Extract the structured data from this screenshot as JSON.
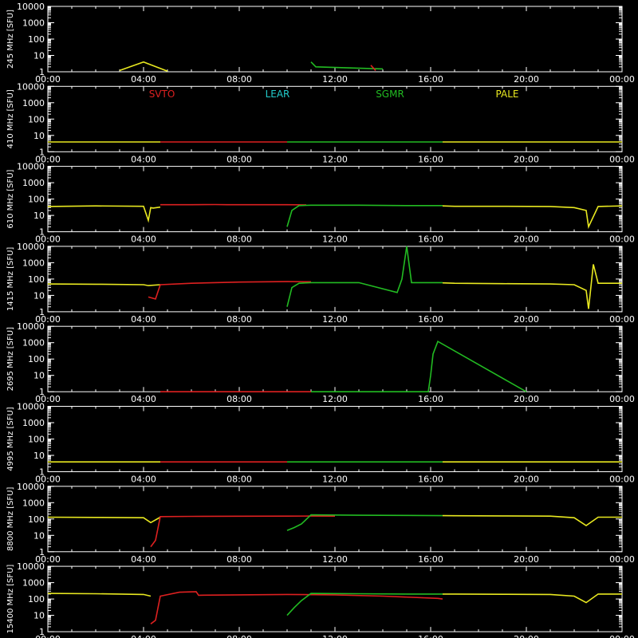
{
  "figure": {
    "background": "#000000",
    "axis_color": "#ffffff",
    "station_colors": {
      "SVTO": "#dd2020",
      "LEAR": "#22cccc",
      "SGMR": "#22bb22",
      "PALE": "#e8e820"
    },
    "legend": [
      "SVTO",
      "LEAR",
      "SGMR",
      "PALE"
    ],
    "unit_label": "[SFU]"
  },
  "chart_data": [
    {
      "type": "line",
      "ylabel": "245 MHz",
      "yscale": "log",
      "ylim": [
        1,
        10000
      ],
      "xlim": [
        "00:00",
        "24:00"
      ],
      "xticks": [
        "00:00",
        "04:00",
        "08:00",
        "12:00",
        "16:00",
        "20:00",
        "00:00"
      ],
      "yticks": [
        "1",
        "10",
        "100",
        "1000",
        "10000"
      ],
      "series": [
        {
          "name": "PALE",
          "x": [
            3.0,
            4.0,
            5.0
          ],
          "y": [
            1.2,
            4,
            1.1
          ]
        },
        {
          "name": "SGMR",
          "x": [
            11.0,
            11.2,
            14.0
          ],
          "y": [
            4,
            2,
            1.5
          ]
        },
        {
          "name": "SVTO",
          "x": [
            13.5,
            13.7
          ],
          "y": [
            2.5,
            1.2
          ]
        }
      ]
    },
    {
      "type": "line",
      "ylabel": "410 MHz",
      "yscale": "log",
      "ylim": [
        1,
        10000
      ],
      "xlim": [
        "00:00",
        "24:00"
      ],
      "xticks": [
        "00:00",
        "04:00",
        "08:00",
        "12:00",
        "16:00",
        "20:00",
        "00:00"
      ],
      "yticks": [
        "1",
        "10",
        "100",
        "1000",
        "10000"
      ],
      "series": [
        {
          "name": "PALE",
          "x": [
            0,
            4.7
          ],
          "y": [
            4,
            4
          ]
        },
        {
          "name": "SVTO",
          "x": [
            4.7,
            10.0
          ],
          "y": [
            4,
            4
          ]
        },
        {
          "name": "SGMR",
          "x": [
            10.0,
            16.5
          ],
          "y": [
            4,
            4
          ]
        },
        {
          "name": "PALE",
          "x": [
            16.5,
            24
          ],
          "y": [
            4,
            4
          ]
        }
      ]
    },
    {
      "type": "line",
      "ylabel": "610 MHz",
      "yscale": "log",
      "ylim": [
        1,
        10000
      ],
      "xlim": [
        "00:00",
        "24:00"
      ],
      "xticks": [
        "00:00",
        "04:00",
        "08:00",
        "12:00",
        "16:00",
        "20:00",
        "00:00"
      ],
      "yticks": [
        "1",
        "10",
        "100",
        "1000",
        "10000"
      ],
      "series": [
        {
          "name": "PALE",
          "x": [
            0,
            2,
            4.0,
            4.2,
            4.3,
            4.4,
            4.7
          ],
          "y": [
            35,
            38,
            36,
            5,
            30,
            28,
            32
          ]
        },
        {
          "name": "SVTO",
          "x": [
            4.7,
            6,
            7,
            7.5,
            8,
            9,
            10.0,
            10.8
          ],
          "y": [
            45,
            45,
            46,
            45,
            45,
            45,
            45,
            44
          ]
        },
        {
          "name": "SGMR",
          "x": [
            10.0,
            10.2,
            10.5,
            11,
            13,
            15,
            16.5
          ],
          "y": [
            2,
            20,
            40,
            42,
            42,
            40,
            40
          ]
        },
        {
          "name": "PALE",
          "x": [
            16.5,
            17,
            19,
            21,
            22,
            22.5,
            22.6,
            23,
            24
          ],
          "y": [
            38,
            36,
            36,
            35,
            30,
            20,
            2,
            35,
            38
          ]
        }
      ]
    },
    {
      "type": "line",
      "ylabel": "1415 MHz",
      "yscale": "log",
      "ylim": [
        1,
        10000
      ],
      "xlim": [
        "00:00",
        "24:00"
      ],
      "xticks": [
        "00:00",
        "04:00",
        "08:00",
        "12:00",
        "16:00",
        "20:00",
        "00:00"
      ],
      "yticks": [
        "1",
        "10",
        "100",
        "1000",
        "10000"
      ],
      "series": [
        {
          "name": "PALE",
          "x": [
            0,
            2,
            4.0,
            4.2,
            4.7
          ],
          "y": [
            50,
            48,
            45,
            40,
            45
          ]
        },
        {
          "name": "SVTO",
          "x": [
            4.2,
            4.5,
            4.7,
            6,
            8,
            10.0,
            11
          ],
          "y": [
            8,
            6,
            45,
            55,
            65,
            70,
            68
          ]
        },
        {
          "name": "SGMR",
          "x": [
            10.0,
            10.2,
            10.5,
            11,
            13,
            14.6,
            14.8,
            15.0,
            15.2,
            16.5
          ],
          "y": [
            2,
            30,
            55,
            60,
            60,
            15,
            100,
            10000,
            60,
            60
          ]
        },
        {
          "name": "PALE",
          "x": [
            16.5,
            17,
            19,
            21,
            22,
            22.5,
            22.6,
            22.8,
            23.0,
            24
          ],
          "y": [
            58,
            55,
            52,
            50,
            45,
            20,
            1.5,
            800,
            55,
            55
          ]
        }
      ]
    },
    {
      "type": "line",
      "ylabel": "2695 MHz",
      "yscale": "log",
      "ylim": [
        1,
        10000
      ],
      "xlim": [
        "00:00",
        "24:00"
      ],
      "xticks": [
        "00:00",
        "04:00",
        "08:00",
        "12:00",
        "16:00",
        "20:00",
        "00:00"
      ],
      "yticks": [
        "1",
        "10",
        "100",
        "1000",
        "10000"
      ],
      "series": [
        {
          "name": "SVTO",
          "x": [
            4.7,
            11.0
          ],
          "y": [
            1,
            1
          ]
        },
        {
          "name": "SGMR",
          "x": [
            11.0,
            15.9,
            16.0,
            16.1,
            16.3,
            20.0
          ],
          "y": [
            1,
            1,
            10,
            200,
            1200,
            1
          ]
        }
      ]
    },
    {
      "type": "line",
      "ylabel": "4995 MHz",
      "yscale": "log",
      "ylim": [
        1,
        10000
      ],
      "xlim": [
        "00:00",
        "24:00"
      ],
      "xticks": [
        "00:00",
        "04:00",
        "08:00",
        "12:00",
        "16:00",
        "20:00",
        "00:00"
      ],
      "yticks": [
        "1",
        "10",
        "100",
        "1000",
        "10000"
      ],
      "series": [
        {
          "name": "PALE",
          "x": [
            0,
            4.7
          ],
          "y": [
            4,
            4
          ]
        },
        {
          "name": "SVTO",
          "x": [
            4.7,
            10.0
          ],
          "y": [
            4,
            4
          ]
        },
        {
          "name": "SGMR",
          "x": [
            10.0,
            16.5
          ],
          "y": [
            4,
            4
          ]
        },
        {
          "name": "PALE",
          "x": [
            16.5,
            24
          ],
          "y": [
            4,
            4
          ]
        }
      ]
    },
    {
      "type": "line",
      "ylabel": "8800 MHz",
      "yscale": "log",
      "ylim": [
        1,
        10000
      ],
      "xlim": [
        "00:00",
        "24:00"
      ],
      "xticks": [
        "00:00",
        "04:00",
        "08:00",
        "12:00",
        "16:00",
        "20:00",
        "00:00"
      ],
      "yticks": [
        "1",
        "10",
        "100",
        "1000",
        "10000"
      ],
      "series": [
        {
          "name": "PALE",
          "x": [
            0,
            2,
            4.0,
            4.3,
            4.7
          ],
          "y": [
            130,
            125,
            120,
            60,
            130
          ]
        },
        {
          "name": "SVTO",
          "x": [
            4.3,
            4.5,
            4.7,
            6,
            8,
            10.0,
            11,
            12
          ],
          "y": [
            2,
            5,
            140,
            145,
            148,
            150,
            152,
            150
          ]
        },
        {
          "name": "SGMR",
          "x": [
            10.0,
            10.3,
            10.6,
            11,
            13,
            15,
            16.5
          ],
          "y": [
            20,
            30,
            50,
            180,
            170,
            165,
            160
          ]
        },
        {
          "name": "PALE",
          "x": [
            16.5,
            17,
            19,
            21,
            22,
            22.5,
            23.0,
            24
          ],
          "y": [
            160,
            158,
            155,
            150,
            120,
            40,
            130,
            130
          ]
        }
      ]
    },
    {
      "type": "line",
      "ylabel": "15400 MHz",
      "yscale": "log",
      "ylim": [
        1,
        10000
      ],
      "xlim": [
        "00:00",
        "24:00"
      ],
      "xticks": [
        "00:00",
        "04:00",
        "08:00",
        "12:00",
        "16:00",
        "20:00",
        "00:00"
      ],
      "yticks": [
        "1",
        "10",
        "100",
        "1000",
        "10000"
      ],
      "series": [
        {
          "name": "PALE",
          "x": [
            0,
            2,
            4.0,
            4.3
          ],
          "y": [
            220,
            210,
            190,
            150
          ]
        },
        {
          "name": "SVTO",
          "x": [
            4.3,
            4.5,
            4.7,
            5.5,
            6.2,
            6.3,
            8,
            10.0,
            12,
            14,
            16.3,
            16.5
          ],
          "y": [
            3,
            5,
            150,
            260,
            280,
            170,
            180,
            190,
            180,
            150,
            110,
            100
          ]
        },
        {
          "name": "SGMR",
          "x": [
            10.0,
            10.3,
            10.6,
            11,
            13,
            15,
            16.5
          ],
          "y": [
            10,
            30,
            80,
            220,
            210,
            200,
            200
          ]
        },
        {
          "name": "PALE",
          "x": [
            16.5,
            17,
            19,
            21,
            22,
            22.5,
            23.0,
            24
          ],
          "y": [
            200,
            200,
            195,
            190,
            150,
            60,
            200,
            200
          ]
        }
      ]
    }
  ]
}
